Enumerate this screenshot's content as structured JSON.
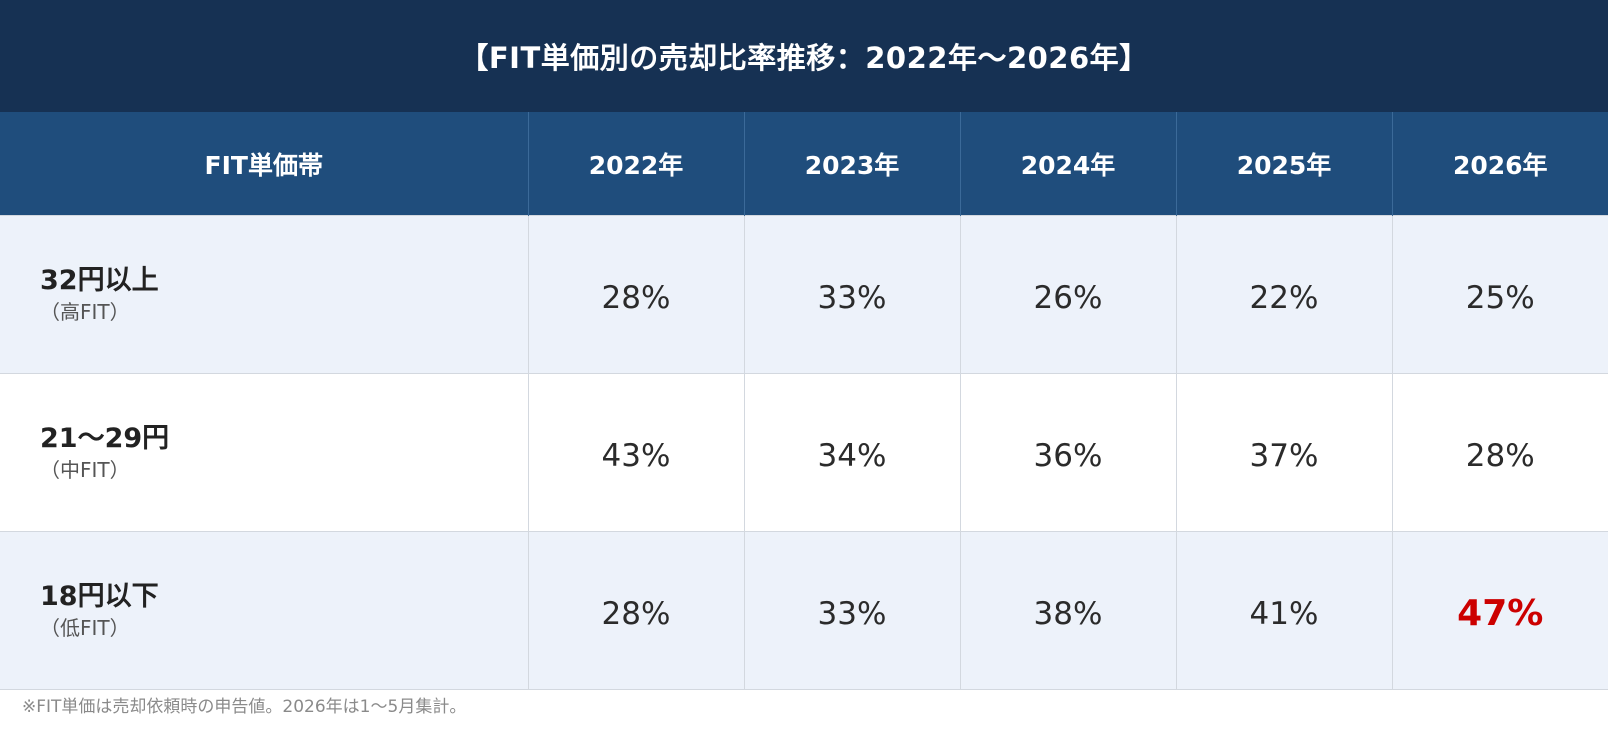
{
  "title": "【FIT単価別の売却比率推移：2022年〜2026年】",
  "table": {
    "headers": [
      "FIT単価帯",
      "2022年",
      "2023年",
      "2024年",
      "2025年",
      "2026年"
    ],
    "rows": [
      {
        "band": "32円以上",
        "sub": "（高FIT）",
        "values": [
          "28%",
          "33%",
          "26%",
          "22%",
          "25%"
        ]
      },
      {
        "band": "21〜29円",
        "sub": "（中FIT）",
        "values": [
          "43%",
          "34%",
          "36%",
          "37%",
          "28%"
        ]
      },
      {
        "band": "18円以下",
        "sub": "（低FIT）",
        "values": [
          "28%",
          "33%",
          "38%",
          "41%",
          "47%"
        ]
      }
    ]
  },
  "highlight_color": "#cc0000",
  "footnote": "※FIT単価は売却依頼時の申告値。2026年は1〜5月集計。"
}
